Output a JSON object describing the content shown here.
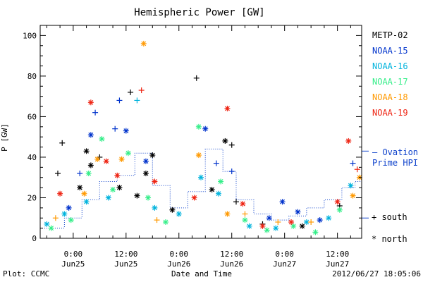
{
  "chart_data": {
    "type": "scatter",
    "title": "Hemispheric Power [GW]",
    "ylabel": "P [GW]",
    "xlabel": "Date and Time",
    "ylim": [
      0,
      105
    ],
    "xlim": [
      "2012-06-24T16:30",
      "2012-06-27T17:30"
    ],
    "y_ticks": [
      0,
      20,
      40,
      60,
      80,
      100
    ],
    "y_minor_step": 5,
    "x_ticks": [
      {
        "t": "2012-06-25T00:00",
        "time": "0:00",
        "date": "Jun25"
      },
      {
        "t": "2012-06-25T12:00",
        "time": "12:00",
        "date": "Jun25"
      },
      {
        "t": "2012-06-26T00:00",
        "time": "0:00",
        "date": "Jun26"
      },
      {
        "t": "2012-06-26T12:00",
        "time": "12:00",
        "date": "Jun26"
      },
      {
        "t": "2012-06-27T00:00",
        "time": "0:00",
        "date": "Jun27"
      },
      {
        "t": "2012-06-27T12:00",
        "time": "12:00",
        "date": "Jun27"
      }
    ],
    "grid": false,
    "legend_position": "right",
    "series": [
      {
        "name": "METP-02",
        "color": "#000000",
        "points": [
          [
            "2012-06-24T20:30",
            32,
            "+"
          ],
          [
            "2012-06-24T21:30",
            47,
            "+"
          ],
          [
            "2012-06-25T01:30",
            25,
            "*"
          ],
          [
            "2012-06-25T03:00",
            43,
            "*"
          ],
          [
            "2012-06-25T04:00",
            36,
            "*"
          ],
          [
            "2012-06-25T06:00",
            40,
            "+"
          ],
          [
            "2012-06-25T10:30",
            25,
            "*"
          ],
          [
            "2012-06-25T13:00",
            72,
            "+"
          ],
          [
            "2012-06-25T14:30",
            21,
            "*"
          ],
          [
            "2012-06-25T16:30",
            32,
            "*"
          ],
          [
            "2012-06-25T18:00",
            41,
            "*"
          ],
          [
            "2012-06-25T22:30",
            14,
            "*"
          ],
          [
            "2012-06-26T04:00",
            79,
            "+"
          ],
          [
            "2012-06-26T07:30",
            24,
            "*"
          ],
          [
            "2012-06-26T10:30",
            48,
            "*"
          ],
          [
            "2012-06-26T12:00",
            46,
            "+"
          ],
          [
            "2012-06-26T13:00",
            18,
            "+"
          ],
          [
            "2012-06-26T19:00",
            7,
            "+"
          ],
          [
            "2012-06-27T04:00",
            6,
            "*"
          ],
          [
            "2012-06-27T12:30",
            16,
            "+"
          ]
        ]
      },
      {
        "name": "NOAA-15",
        "color": "#0033cc",
        "points": [
          [
            "2012-06-24T23:00",
            15,
            "*"
          ],
          [
            "2012-06-25T01:30",
            32,
            "+"
          ],
          [
            "2012-06-25T04:00",
            51,
            "*"
          ],
          [
            "2012-06-25T05:00",
            62,
            "+"
          ],
          [
            "2012-06-25T09:30",
            54,
            "+"
          ],
          [
            "2012-06-25T10:30",
            68,
            "+"
          ],
          [
            "2012-06-25T12:00",
            53,
            "*"
          ],
          [
            "2012-06-25T16:30",
            38,
            "*"
          ],
          [
            "2012-06-26T06:00",
            54,
            "*"
          ],
          [
            "2012-06-26T08:30",
            37,
            "+"
          ],
          [
            "2012-06-26T12:00",
            33,
            "+"
          ],
          [
            "2012-06-26T20:30",
            10,
            "*"
          ],
          [
            "2012-06-26T23:30",
            18,
            "*"
          ],
          [
            "2012-06-27T03:00",
            13,
            "*"
          ],
          [
            "2012-06-27T08:00",
            9,
            "*"
          ],
          [
            "2012-06-27T15:30",
            37,
            "+"
          ]
        ]
      },
      {
        "name": "NOAA-16",
        "color": "#00b3dd",
        "points": [
          [
            "2012-06-24T18:00",
            7,
            "*"
          ],
          [
            "2012-06-24T22:00",
            12,
            "*"
          ],
          [
            "2012-06-25T03:00",
            18,
            "*"
          ],
          [
            "2012-06-25T08:00",
            20,
            "*"
          ],
          [
            "2012-06-25T14:30",
            68,
            "+"
          ],
          [
            "2012-06-25T18:30",
            15,
            "*"
          ],
          [
            "2012-06-26T00:00",
            12,
            "*"
          ],
          [
            "2012-06-26T05:00",
            30,
            "*"
          ],
          [
            "2012-06-26T09:00",
            22,
            "*"
          ],
          [
            "2012-06-26T16:00",
            6,
            "*"
          ],
          [
            "2012-06-26T22:00",
            5,
            "*"
          ],
          [
            "2012-06-27T05:00",
            8,
            "*"
          ],
          [
            "2012-06-27T10:00",
            10,
            "*"
          ],
          [
            "2012-06-27T15:00",
            26,
            "*"
          ]
        ]
      },
      {
        "name": "NOAA-17",
        "color": "#33ee88",
        "points": [
          [
            "2012-06-24T19:00",
            5,
            "*"
          ],
          [
            "2012-06-24T23:30",
            9,
            "*"
          ],
          [
            "2012-06-25T03:30",
            32,
            "*"
          ],
          [
            "2012-06-25T06:30",
            49,
            "*"
          ],
          [
            "2012-06-25T09:00",
            24,
            "*"
          ],
          [
            "2012-06-25T12:30",
            42,
            "*"
          ],
          [
            "2012-06-25T17:00",
            20,
            "*"
          ],
          [
            "2012-06-25T21:00",
            8,
            "*"
          ],
          [
            "2012-06-26T04:30",
            55,
            "*"
          ],
          [
            "2012-06-26T09:30",
            28,
            "*"
          ],
          [
            "2012-06-26T15:00",
            9,
            "*"
          ],
          [
            "2012-06-26T20:00",
            4,
            "*"
          ],
          [
            "2012-06-27T02:00",
            6,
            "*"
          ],
          [
            "2012-06-27T07:00",
            3,
            "*"
          ],
          [
            "2012-06-27T12:30",
            14,
            "*"
          ]
        ]
      },
      {
        "name": "NOAA-18",
        "color": "#ff9900",
        "points": [
          [
            "2012-06-24T20:00",
            10,
            "+"
          ],
          [
            "2012-06-25T02:30",
            22,
            "*"
          ],
          [
            "2012-06-25T05:30",
            39,
            "*"
          ],
          [
            "2012-06-25T11:00",
            39,
            "*"
          ],
          [
            "2012-06-25T16:00",
            96,
            "*"
          ],
          [
            "2012-06-25T19:00",
            9,
            "+"
          ],
          [
            "2012-06-26T04:30",
            41,
            "*"
          ],
          [
            "2012-06-26T11:00",
            12,
            "*"
          ],
          [
            "2012-06-26T15:00",
            12,
            "+"
          ],
          [
            "2012-06-26T22:30",
            8,
            "+"
          ],
          [
            "2012-06-27T06:00",
            8,
            "+"
          ],
          [
            "2012-06-27T15:30",
            21,
            "*"
          ],
          [
            "2012-06-27T17:00",
            30,
            "*"
          ]
        ]
      },
      {
        "name": "NOAA-19",
        "color": "#ee2211",
        "points": [
          [
            "2012-06-24T21:00",
            22,
            "*"
          ],
          [
            "2012-06-25T04:00",
            67,
            "*"
          ],
          [
            "2012-06-25T07:30",
            38,
            "*"
          ],
          [
            "2012-06-25T10:00",
            31,
            "*"
          ],
          [
            "2012-06-25T15:30",
            73,
            "+"
          ],
          [
            "2012-06-25T18:30",
            28,
            "*"
          ],
          [
            "2012-06-26T03:30",
            20,
            "*"
          ],
          [
            "2012-06-26T11:00",
            64,
            "*"
          ],
          [
            "2012-06-26T14:30",
            17,
            "*"
          ],
          [
            "2012-06-26T19:00",
            6,
            "*"
          ],
          [
            "2012-06-27T01:30",
            8,
            "*"
          ],
          [
            "2012-06-27T12:00",
            18,
            "*"
          ],
          [
            "2012-06-27T14:30",
            48,
            "*"
          ],
          [
            "2012-06-27T16:30",
            34,
            "+"
          ]
        ]
      }
    ],
    "ovation": {
      "name": "Ovation Prime HPI",
      "color": "#1144cc",
      "points": [
        [
          "2012-06-24T16:30",
          5
        ],
        [
          "2012-06-24T22:00",
          10
        ],
        [
          "2012-06-25T02:00",
          19
        ],
        [
          "2012-06-25T06:00",
          28
        ],
        [
          "2012-06-25T10:00",
          31
        ],
        [
          "2012-06-25T14:00",
          42
        ],
        [
          "2012-06-25T18:00",
          26
        ],
        [
          "2012-06-25T22:00",
          15
        ],
        [
          "2012-06-26T02:00",
          23
        ],
        [
          "2012-06-26T06:00",
          44
        ],
        [
          "2012-06-26T10:00",
          33
        ],
        [
          "2012-06-26T13:00",
          19
        ],
        [
          "2012-06-26T17:00",
          12
        ],
        [
          "2012-06-26T21:00",
          9
        ],
        [
          "2012-06-27T01:00",
          11
        ],
        [
          "2012-06-27T05:00",
          15
        ],
        [
          "2012-06-27T09:00",
          19
        ],
        [
          "2012-06-27T13:00",
          25
        ],
        [
          "2012-06-27T16:00",
          28
        ],
        [
          "2012-06-27T17:30",
          10
        ]
      ]
    },
    "legend": {
      "items": [
        "METP-02",
        "NOAA-15",
        "NOAA-16",
        "NOAA-17",
        "NOAA-18",
        "NOAA-19"
      ],
      "ovation_line1": "— Ovation",
      "ovation_line2": "Prime HPI",
      "south_label": "+ south",
      "north_label": "* north"
    }
  },
  "footer": {
    "left": "Plot: CCMC",
    "center": "Date and Time",
    "right": "2012/06/27 18:05:06"
  }
}
